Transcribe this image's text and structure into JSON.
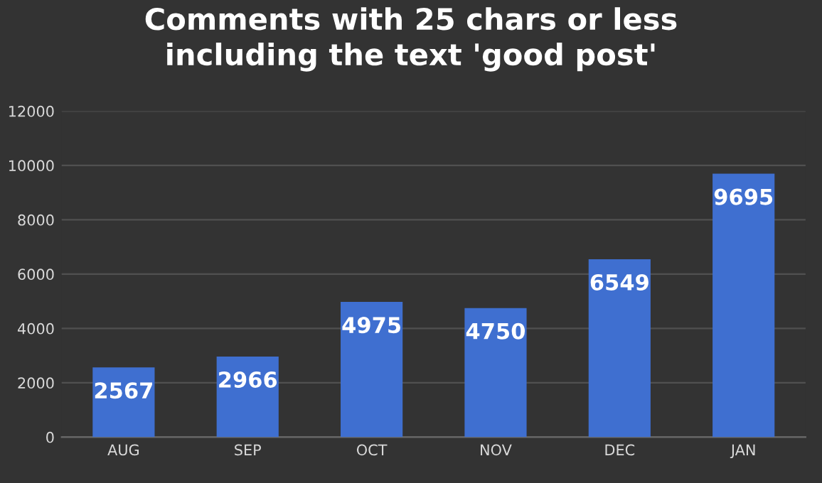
{
  "chart_data": {
    "type": "bar",
    "title": "Comments with 25 chars or less\nincluding the text 'good post'",
    "categories": [
      "AUG",
      "SEP",
      "OCT",
      "NOV",
      "DEC",
      "JAN"
    ],
    "values": [
      2567,
      2966,
      4975,
      4750,
      6549,
      9695
    ],
    "color": "#3f6fd0",
    "ylim": [
      0,
      12000
    ],
    "yticks": [
      0,
      2000,
      4000,
      6000,
      8000,
      10000,
      12000
    ],
    "grid": "y",
    "data_labels": true
  }
}
